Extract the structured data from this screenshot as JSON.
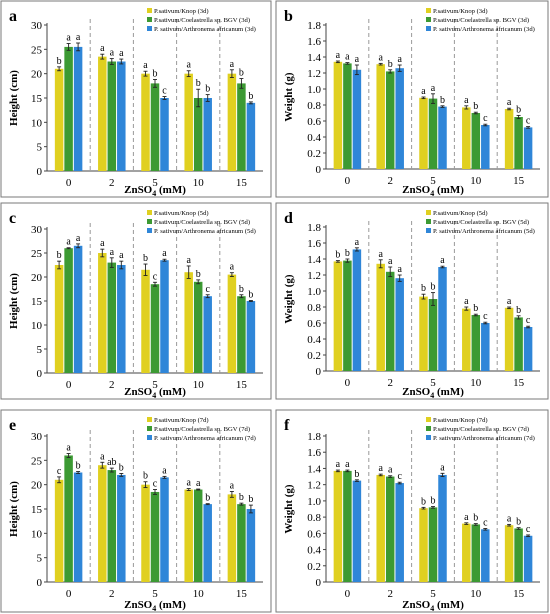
{
  "colors": {
    "knop": "#E0D020",
    "coel": "#3C9A33",
    "arth": "#2F86D8",
    "axis": "#444444",
    "divider": "#9A9A9A",
    "frame": "#7A7A7A"
  },
  "chart_data": [
    {
      "panel": "a",
      "type": "bar",
      "categories": [
        "0",
        "2",
        "5",
        "10",
        "15"
      ],
      "yticks": [
        "0",
        "5",
        "10",
        "15",
        "20",
        "25",
        "30"
      ],
      "ylim": [
        0,
        30
      ],
      "ylabel": "Height (cm)",
      "xlabel_main": "ZnSO",
      "xlabel_sub": "4",
      "xlabel_tail": " (mM)",
      "series": [
        {
          "name": "P.sativum/Knop (3d)",
          "values": [
            21,
            23.5,
            20,
            20,
            20
          ],
          "errors": [
            0.4,
            0.5,
            0.5,
            0.6,
            0.8
          ],
          "letters": [
            "b",
            "a",
            "a",
            "a",
            "a"
          ]
        },
        {
          "name": "P.sativum/Coelastrella sp. BGV (3d)",
          "values": [
            25.5,
            22.5,
            18,
            15,
            18
          ],
          "errors": [
            0.7,
            0.6,
            0.8,
            1.8,
            1.0
          ],
          "letters": [
            "a",
            "a",
            "b",
            "b",
            "b"
          ]
        },
        {
          "name": "P. sativum/Arthronema africanum (3d)",
          "values": [
            25.5,
            22.5,
            15,
            15,
            14
          ],
          "errors": [
            0.8,
            0.5,
            0.3,
            0.7,
            0.2
          ],
          "letters": [
            "a",
            "a",
            "c",
            "b",
            "b"
          ]
        }
      ]
    },
    {
      "panel": "b",
      "type": "bar",
      "categories": [
        "0",
        "2",
        "5",
        "10",
        "15"
      ],
      "yticks": [
        "0",
        "0.2",
        "0.4",
        "0.6",
        "0.8",
        "1.0",
        "1.2",
        "1.4",
        "1.6",
        "1.8"
      ],
      "ylim": [
        0,
        1.8
      ],
      "ylabel": "Weight (g)",
      "xlabel_main": "ZnSO",
      "xlabel_sub": "4",
      "xlabel_tail": " (mM)",
      "series": [
        {
          "name": "P.sativum/Knop (3d)",
          "values": [
            1.34,
            1.31,
            0.89,
            0.77,
            0.75
          ],
          "errors": [
            0.01,
            0.01,
            0.01,
            0.02,
            0.01
          ],
          "letters": [
            "a",
            "a",
            "a",
            "a",
            "a"
          ]
        },
        {
          "name": "P.sativum/Coelastrella sp. BGV (3d)",
          "values": [
            1.32,
            1.22,
            0.88,
            0.7,
            0.65
          ],
          "errors": [
            0.01,
            0.02,
            0.06,
            0.01,
            0.02
          ],
          "letters": [
            "a",
            "b",
            "a",
            "b",
            "b"
          ]
        },
        {
          "name": "P. sativum/Arthronema africanum (3d)",
          "values": [
            1.24,
            1.26,
            0.78,
            0.55,
            0.52
          ],
          "errors": [
            0.06,
            0.04,
            0.01,
            0.01,
            0.01
          ],
          "letters": [
            "a",
            "a",
            "b",
            "c",
            "c"
          ]
        }
      ]
    },
    {
      "panel": "c",
      "type": "bar",
      "categories": [
        "0",
        "2",
        "5",
        "10",
        "15"
      ],
      "yticks": [
        "0",
        "5",
        "10",
        "15",
        "20",
        "25",
        "30"
      ],
      "ylim": [
        0,
        30
      ],
      "ylabel": "Height (cm)",
      "xlabel_main": "ZnSO",
      "xlabel_sub": "4",
      "xlabel_tail": " (mM)",
      "series": [
        {
          "name": "P.sativum/Knop (5d)",
          "values": [
            22.5,
            25,
            21.5,
            21,
            20.5
          ],
          "errors": [
            0.8,
            0.8,
            1.2,
            1.3,
            0.4
          ],
          "letters": [
            "b",
            "a",
            "b",
            "a",
            "a"
          ]
        },
        {
          "name": "P.sativum/Coelastrella sp. BGV (5d)",
          "values": [
            26,
            23,
            18.5,
            19,
            16
          ],
          "errors": [
            0.1,
            1.0,
            0.4,
            0.4,
            0.3
          ],
          "letters": [
            "a",
            "a",
            "c",
            "b",
            "b"
          ]
        },
        {
          "name": "P. sativum/Arthronema africanum (5d)",
          "values": [
            26.5,
            22.5,
            23.5,
            16,
            15
          ],
          "errors": [
            0.4,
            0.8,
            0.2,
            0.3,
            0.1
          ],
          "letters": [
            "a",
            "a",
            "a",
            "c",
            "b"
          ]
        }
      ]
    },
    {
      "panel": "d",
      "type": "bar",
      "categories": [
        "0",
        "2",
        "5",
        "10",
        "15"
      ],
      "yticks": [
        "0",
        "0.2",
        "0.4",
        "0.6",
        "0.8",
        "1.0",
        "1.2",
        "1.4",
        "1.6",
        "1.8"
      ],
      "ylim": [
        0,
        1.8
      ],
      "ylabel": "Weight (g)",
      "xlabel_main": "ZnSO",
      "xlabel_sub": "4",
      "xlabel_tail": " (mM)",
      "series": [
        {
          "name": "P.sativum/Knop (5d)",
          "values": [
            1.37,
            1.34,
            0.93,
            0.78,
            0.79
          ],
          "errors": [
            0.01,
            0.05,
            0.03,
            0.02,
            0.01
          ],
          "letters": [
            "b",
            "a",
            "b",
            "a",
            "a"
          ]
        },
        {
          "name": "P.sativum/Coelastrella sp. BGV (5d)",
          "values": [
            1.38,
            1.24,
            0.9,
            0.7,
            0.67
          ],
          "errors": [
            0.02,
            0.06,
            0.08,
            0.01,
            0.02
          ],
          "letters": [
            "b",
            "a",
            "b",
            "b",
            "b"
          ]
        },
        {
          "name": "P. sativum/Arthronema africanum (5d)",
          "values": [
            1.52,
            1.16,
            1.3,
            0.6,
            0.55
          ],
          "errors": [
            0.02,
            0.04,
            0.01,
            0.01,
            0.01
          ],
          "letters": [
            "a",
            "a",
            "a",
            "c",
            "c"
          ]
        }
      ]
    },
    {
      "panel": "e",
      "type": "bar",
      "categories": [
        "0",
        "2",
        "5",
        "10",
        "15"
      ],
      "yticks": [
        "0",
        "5",
        "10",
        "15",
        "20",
        "25",
        "30"
      ],
      "ylim": [
        0,
        30
      ],
      "ylabel": "Height (cm)",
      "xlabel_main": "ZnSO",
      "xlabel_sub": "4",
      "xlabel_tail": " (mM)",
      "series": [
        {
          "name": "P.sativum/Knop (7d)",
          "values": [
            21,
            24,
            20,
            19,
            18
          ],
          "errors": [
            0.6,
            0.6,
            0.6,
            0.2,
            0.6
          ],
          "letters": [
            "c",
            "a",
            "b",
            "a",
            "a"
          ]
        },
        {
          "name": "P.sativum/Coelastrella sp. BGV (7d)",
          "values": [
            26,
            23,
            18.5,
            19,
            16
          ],
          "errors": [
            0.4,
            0.4,
            0.5,
            0.1,
            0.2
          ],
          "letters": [
            "a",
            "ab",
            "c",
            "a",
            "b"
          ]
        },
        {
          "name": "P. sativum/Arthronema africanum (7d)",
          "values": [
            22.5,
            22,
            21.5,
            16,
            15
          ],
          "errors": [
            0.2,
            0.3,
            0.2,
            0.1,
            0.8
          ],
          "letters": [
            "b",
            "b",
            "a",
            "b",
            "b"
          ]
        }
      ]
    },
    {
      "panel": "f",
      "type": "bar",
      "categories": [
        "0",
        "2",
        "5",
        "10",
        "15"
      ],
      "yticks": [
        "0",
        "0.2",
        "0.4",
        "0.6",
        "0.8",
        "1.0",
        "1.2",
        "1.4",
        "1.6",
        "1.8"
      ],
      "ylim": [
        0,
        1.8
      ],
      "ylabel": "Weight (g)",
      "xlabel_main": "ZnSO",
      "xlabel_sub": "4",
      "xlabel_tail": " (mM)",
      "series": [
        {
          "name": "P.sativum/Knop (7d)",
          "values": [
            1.37,
            1.32,
            0.91,
            0.72,
            0.7
          ],
          "errors": [
            0.01,
            0.01,
            0.01,
            0.01,
            0.01
          ],
          "letters": [
            "a",
            "a",
            "b",
            "a",
            "a"
          ]
        },
        {
          "name": "P.sativum/Coelastrella sp. BGV (7d)",
          "values": [
            1.37,
            1.3,
            0.92,
            0.71,
            0.66
          ],
          "errors": [
            0.01,
            0.01,
            0.01,
            0.01,
            0.01
          ],
          "letters": [
            "a",
            "a",
            "b",
            "b",
            "b"
          ]
        },
        {
          "name": "P. sativum/Arthronema africanum (7d)",
          "values": [
            1.25,
            1.22,
            1.32,
            0.65,
            0.57
          ],
          "errors": [
            0.01,
            0.01,
            0.02,
            0.01,
            0.01
          ],
          "letters": [
            "b",
            "c",
            "a",
            "c",
            "c"
          ]
        }
      ]
    }
  ]
}
